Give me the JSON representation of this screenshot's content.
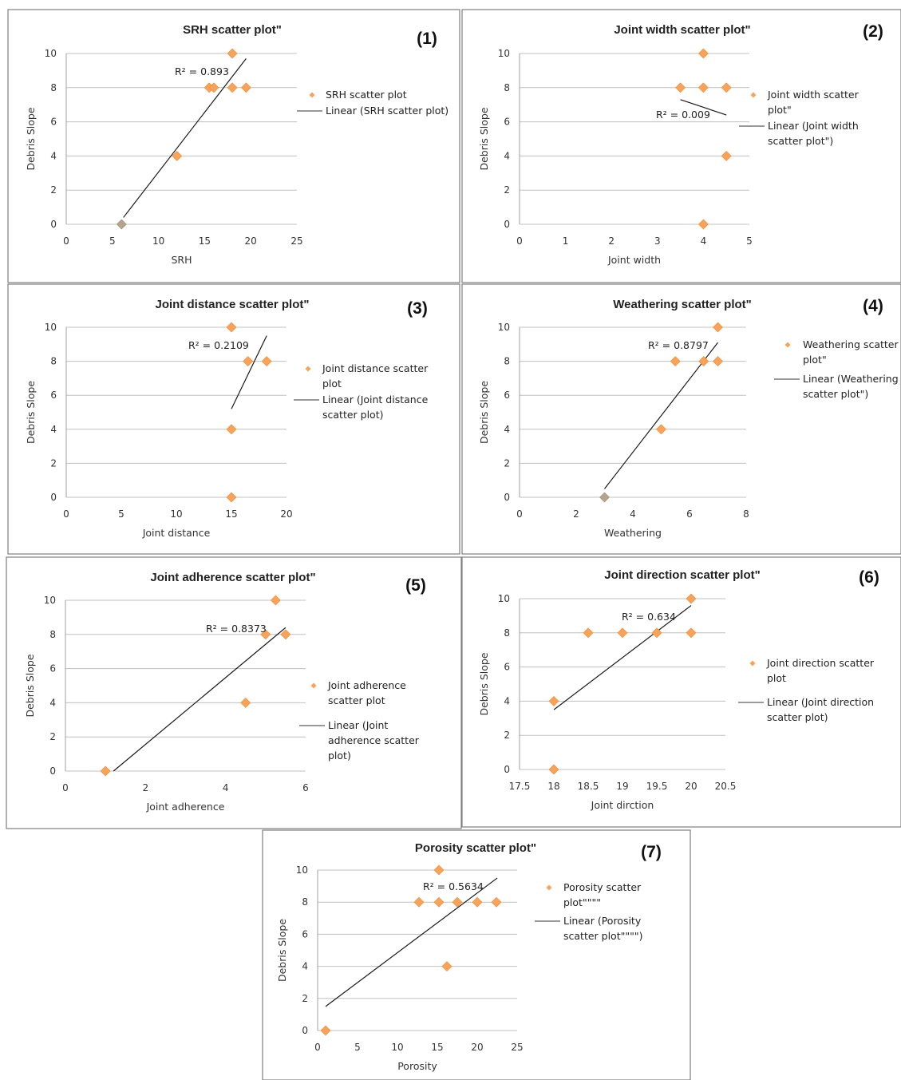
{
  "chart_data": [
    {
      "id": "p1",
      "type": "scatter",
      "panel_number": "(1)",
      "title": "SRH scatter plot\"",
      "xlabel": "SRH",
      "ylabel": "Debris Slope",
      "xlim": [
        0,
        25
      ],
      "xticks": [
        "0",
        "5",
        "10",
        "15",
        "20",
        "25"
      ],
      "ylim": [
        0,
        10
      ],
      "yticks": [
        "0",
        "2",
        "4",
        "6",
        "8",
        "10"
      ],
      "points": [
        {
          "x": 6,
          "y": 0
        },
        {
          "x": 12,
          "y": 4
        },
        {
          "x": 15.5,
          "y": 8
        },
        {
          "x": 16,
          "y": 8
        },
        {
          "x": 18,
          "y": 8
        },
        {
          "x": 19.5,
          "y": 8
        },
        {
          "x": 18,
          "y": 10
        }
      ],
      "trendline": {
        "x1": 6.2,
        "y1": 0.4,
        "x2": 19.5,
        "y2": 9.7
      },
      "r2_label": "R² = 0.893",
      "legend": [
        "SRH scatter plot",
        "Linear (SRH scatter plot)"
      ],
      "legend_position": "right"
    },
    {
      "id": "p2",
      "type": "scatter",
      "panel_number": "(2)",
      "title": "Joint width scatter plot\"",
      "xlabel": "Joint width",
      "ylabel": "Debris Slope",
      "xlim": [
        0,
        5
      ],
      "xticks": [
        "0",
        "1",
        "2",
        "3",
        "4",
        "5"
      ],
      "ylim": [
        0,
        10
      ],
      "yticks": [
        "0",
        "2",
        "4",
        "6",
        "8",
        "10"
      ],
      "points": [
        {
          "x": 4,
          "y": 10
        },
        {
          "x": 3.5,
          "y": 8
        },
        {
          "x": 4,
          "y": 8
        },
        {
          "x": 4.5,
          "y": 8
        },
        {
          "x": 4.5,
          "y": 4
        },
        {
          "x": 4,
          "y": 0
        }
      ],
      "trendline": {
        "x1": 3.5,
        "y1": 7.3,
        "x2": 4.5,
        "y2": 6.4
      },
      "r2_label": "R² = 0.009",
      "legend": [
        "Joint width scatter plot\"",
        "Linear (Joint width scatter plot\")"
      ],
      "legend_position": "right"
    },
    {
      "id": "p3",
      "type": "scatter",
      "panel_number": "(3)",
      "title": "Joint distance scatter plot\"",
      "xlabel": "Joint distance",
      "ylabel": "Debris Slope",
      "xlim": [
        0,
        20
      ],
      "xticks": [
        "0",
        "5",
        "10",
        "15",
        "20"
      ],
      "ylim": [
        0,
        10
      ],
      "yticks": [
        "0",
        "2",
        "4",
        "6",
        "8",
        "10"
      ],
      "points": [
        {
          "x": 15,
          "y": 10
        },
        {
          "x": 16.5,
          "y": 8
        },
        {
          "x": 18.2,
          "y": 8
        },
        {
          "x": 15,
          "y": 4
        },
        {
          "x": 15,
          "y": 0
        }
      ],
      "trendline": {
        "x1": 15,
        "y1": 5.2,
        "x2": 18.2,
        "y2": 9.5
      },
      "r2_label": "R² = 0.2109",
      "legend": [
        "Joint distance scatter plot",
        "Linear (Joint distance scatter plot)"
      ],
      "legend_position": "right"
    },
    {
      "id": "p4",
      "type": "scatter",
      "panel_number": "(4)",
      "title": "Weathering scatter plot\"",
      "xlabel": "Weathering",
      "ylabel": "Debris Slope",
      "xlim": [
        0,
        8
      ],
      "xticks": [
        "0",
        "2",
        "4",
        "6",
        "8"
      ],
      "ylim": [
        0,
        10
      ],
      "yticks": [
        "0",
        "2",
        "4",
        "6",
        "8",
        "10"
      ],
      "points": [
        {
          "x": 3,
          "y": 0
        },
        {
          "x": 5,
          "y": 4
        },
        {
          "x": 5.5,
          "y": 8
        },
        {
          "x": 6.5,
          "y": 8
        },
        {
          "x": 7,
          "y": 8
        },
        {
          "x": 7,
          "y": 10
        }
      ],
      "trendline": {
        "x1": 3,
        "y1": 0.5,
        "x2": 7,
        "y2": 9.1
      },
      "r2_label": "R² = 0.8797",
      "legend": [
        "Weathering scatter plot\"",
        "Linear (Weathering scatter plot\")"
      ],
      "legend_position": "right"
    },
    {
      "id": "p5",
      "type": "scatter",
      "panel_number": "(5)",
      "title": "Joint adherence scatter plot\"",
      "xlabel": "Joint adherence",
      "ylabel": "Debris Slope",
      "xlim": [
        0,
        6
      ],
      "xticks": [
        "0",
        "2",
        "4",
        "6"
      ],
      "ylim": [
        0,
        10
      ],
      "yticks": [
        "0",
        "2",
        "4",
        "6",
        "8",
        "10"
      ],
      "points": [
        {
          "x": 1,
          "y": 0
        },
        {
          "x": 4.5,
          "y": 4
        },
        {
          "x": 5,
          "y": 8
        },
        {
          "x": 5.5,
          "y": 8
        },
        {
          "x": 5.25,
          "y": 10
        }
      ],
      "trendline": {
        "x1": 1.2,
        "y1": 0,
        "x2": 5.5,
        "y2": 8.4
      },
      "r2_label": "R² = 0.8373",
      "legend": [
        "Joint adherence scatter plot",
        "Linear (Joint adherence scatter plot)"
      ],
      "legend_position": "right"
    },
    {
      "id": "p6",
      "type": "scatter",
      "panel_number": "(6)",
      "title": "Joint direction scatter plot\"",
      "xlabel": "Joint dirction",
      "ylabel": "Debris Slope",
      "xlim": [
        17.5,
        20.5
      ],
      "xticks": [
        "17.5",
        "18",
        "18.5",
        "19",
        "19.5",
        "20",
        "20.5"
      ],
      "ylim": [
        0,
        10
      ],
      "yticks": [
        "0",
        "2",
        "4",
        "6",
        "8",
        "10"
      ],
      "points": [
        {
          "x": 18,
          "y": 0
        },
        {
          "x": 18,
          "y": 4
        },
        {
          "x": 18.5,
          "y": 8
        },
        {
          "x": 19,
          "y": 8
        },
        {
          "x": 19.5,
          "y": 8
        },
        {
          "x": 20,
          "y": 8
        },
        {
          "x": 20,
          "y": 10
        }
      ],
      "trendline": {
        "x1": 18,
        "y1": 3.5,
        "x2": 20,
        "y2": 9.6
      },
      "r2_label": "R² = 0.634",
      "legend": [
        "Joint direction scatter plot",
        "Linear (Joint direction scatter plot)"
      ],
      "legend_position": "right"
    },
    {
      "id": "p7",
      "type": "scatter",
      "panel_number": "(7)",
      "title": "Porosity scatter plot\"",
      "xlabel": "Porosity",
      "ylabel": "Debris Slope",
      "xlim": [
        0,
        25
      ],
      "xticks": [
        "0",
        "5",
        "10",
        "15",
        "20",
        "25"
      ],
      "ylim": [
        0,
        10
      ],
      "yticks": [
        "0",
        "2",
        "4",
        "6",
        "8",
        "10"
      ],
      "points": [
        {
          "x": 1,
          "y": 0
        },
        {
          "x": 16.2,
          "y": 4
        },
        {
          "x": 12.7,
          "y": 8
        },
        {
          "x": 15.2,
          "y": 8
        },
        {
          "x": 17.5,
          "y": 8
        },
        {
          "x": 20,
          "y": 8
        },
        {
          "x": 22.4,
          "y": 8
        },
        {
          "x": 15.2,
          "y": 10
        }
      ],
      "trendline": {
        "x1": 1,
        "y1": 1.5,
        "x2": 22.5,
        "y2": 9.5
      },
      "r2_label": "R² = 0.5634",
      "legend": [
        "Porosity scatter plot\"\"\"\"",
        "Linear (Porosity scatter plot\"\"\"\")"
      ],
      "legend_position": "right"
    }
  ]
}
